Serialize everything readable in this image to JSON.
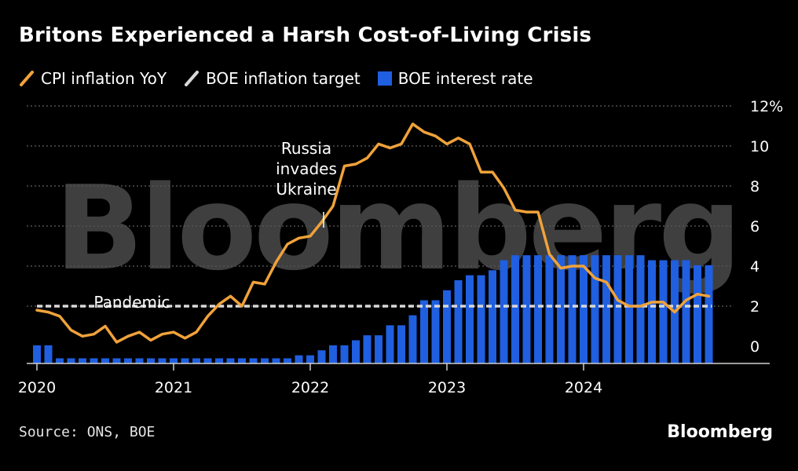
{
  "title": "Britons Experienced a Harsh Cost-of-Living Crisis",
  "source": "Source: ONS, BOE",
  "brand": "Bloomberg",
  "watermark": "Bloomberg",
  "colors": {
    "cpi": "#f0a23a",
    "target": "#d8d8d8",
    "rate": "#1f5fe0",
    "grid": "#777777",
    "watermark": "#555555"
  },
  "chart_data": {
    "type": "line",
    "title": "Britons Experienced a Harsh Cost-of-Living Crisis",
    "xlabel": "",
    "ylabel": "",
    "x_ticks": [
      "2020",
      "2021",
      "2022",
      "2023",
      "2024"
    ],
    "y_ticks": [
      "0",
      "2",
      "4",
      "6",
      "8",
      "10",
      "12%"
    ],
    "ylim": [
      -1,
      12
    ],
    "grid": "horizontal dotted",
    "legend": "top-left",
    "annotations": [
      {
        "text": [
          "Russia",
          "invades",
          "Ukraine"
        ],
        "x": "2022-02"
      },
      {
        "text": [
          "Pandemic"
        ],
        "x": "2020-03"
      }
    ],
    "series": [
      {
        "name": "CPI inflation YoY",
        "kind": "line",
        "start": "2020-01",
        "values": [
          1.8,
          1.7,
          1.5,
          0.8,
          0.5,
          0.6,
          1.0,
          0.2,
          0.5,
          0.7,
          0.3,
          0.6,
          0.7,
          0.4,
          0.7,
          1.5,
          2.1,
          2.5,
          2.0,
          3.2,
          3.1,
          4.2,
          5.1,
          5.4,
          5.5,
          6.2,
          7.0,
          9.0,
          9.1,
          9.4,
          10.1,
          9.9,
          10.1,
          11.1,
          10.7,
          10.5,
          10.1,
          10.4,
          10.1,
          8.7,
          8.7,
          7.9,
          6.8,
          6.7,
          6.7,
          4.6,
          3.9,
          4.0,
          4.0,
          3.4,
          3.2,
          2.3,
          2.0,
          2.0,
          2.2,
          2.2,
          1.7,
          2.3,
          2.6,
          2.5
        ]
      },
      {
        "name": "BOE inflation target",
        "kind": "dashed",
        "start": "2020-01",
        "values": [
          2,
          2
        ]
      },
      {
        "name": "BOE interest rate",
        "kind": "bar",
        "start": "2020-01",
        "values": [
          0.75,
          0.75,
          0.1,
          0.1,
          0.1,
          0.1,
          0.1,
          0.1,
          0.1,
          0.1,
          0.1,
          0.1,
          0.1,
          0.1,
          0.1,
          0.1,
          0.1,
          0.1,
          0.1,
          0.1,
          0.1,
          0.1,
          0.1,
          0.25,
          0.25,
          0.5,
          0.75,
          0.75,
          1.0,
          1.25,
          1.25,
          1.75,
          1.75,
          2.25,
          3.0,
          3.0,
          3.5,
          4.0,
          4.25,
          4.25,
          4.5,
          5.0,
          5.25,
          5.25,
          5.25,
          5.25,
          5.25,
          5.25,
          5.25,
          5.25,
          5.25,
          5.25,
          5.25,
          5.25,
          5.0,
          5.0,
          5.0,
          5.0,
          4.75,
          4.75
        ]
      }
    ]
  }
}
